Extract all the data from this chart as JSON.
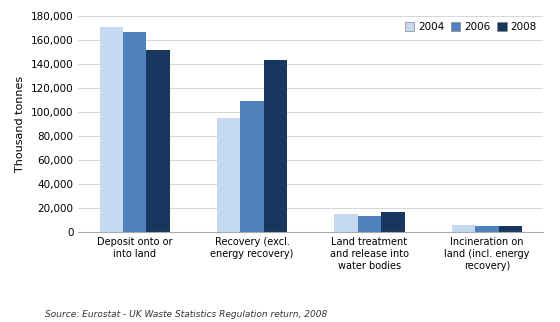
{
  "categories": [
    "Deposit onto or\ninto land",
    "Recovery (excl.\nenergy recovery)",
    "Land treatment\nand release into\nwater bodies",
    "Incineration on\nland (incl. energy\nrecovery)"
  ],
  "series": {
    "2004": [
      171000,
      95000,
      14500,
      5500
    ],
    "2006": [
      167000,
      109000,
      13500,
      5200
    ],
    "2008": [
      152000,
      143000,
      16500,
      5000
    ]
  },
  "colors": {
    "2004": "#c5d9f1",
    "2006": "#4f81bd",
    "2008": "#17375e"
  },
  "ylabel": "Thousand tonnes",
  "ylim": [
    0,
    180000
  ],
  "yticks": [
    0,
    20000,
    40000,
    60000,
    80000,
    100000,
    120000,
    140000,
    160000,
    180000
  ],
  "legend_labels": [
    "2004",
    "2006",
    "2008"
  ],
  "source_text": "Source: Eurostat - UK Waste Statistics Regulation return, 2008",
  "bar_width": 0.2,
  "background_color": "#ffffff",
  "grid_color": "#d0d0d0"
}
